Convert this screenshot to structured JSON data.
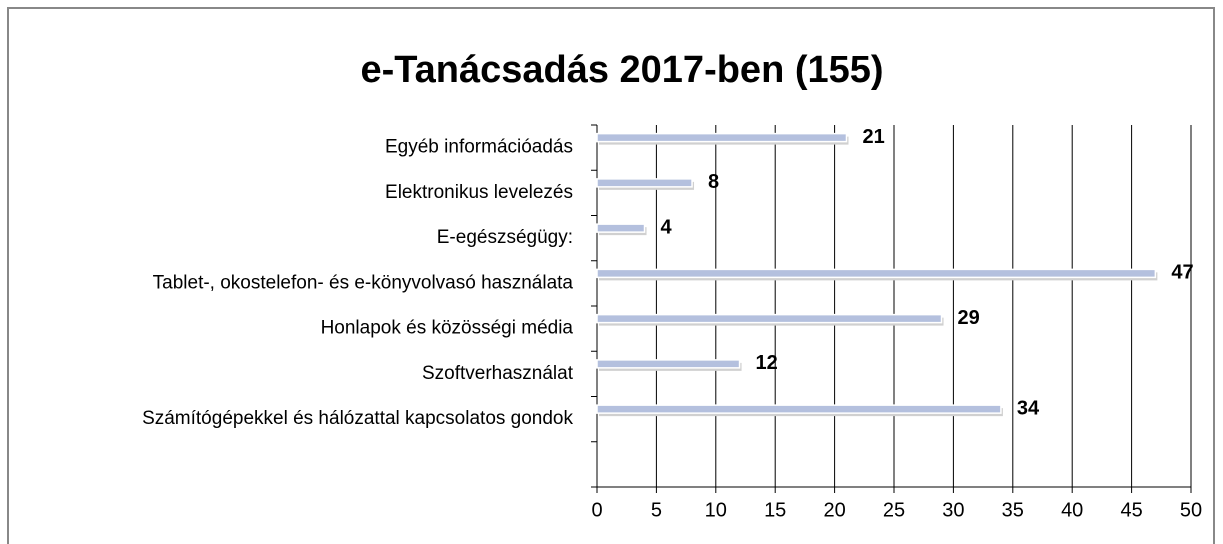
{
  "chart_data": {
    "type": "bar",
    "orientation": "horizontal",
    "title": "e-Tanácsadás 2017-ben (155)",
    "categories": [
      "Egyéb információadás",
      "Elektronikus levelezés",
      "E-egészségügy:",
      "Tablet-, okostelefon- és e-könyvolvasó használata",
      "Honlapok és közösségi média",
      "Szoftverhasználat",
      "Számítógépekkel és hálózattal kapcsolatos gondok",
      null
    ],
    "values": [
      21,
      8,
      4,
      47,
      29,
      12,
      34,
      null
    ],
    "color": "#b4c0de",
    "xlim": [
      0,
      50
    ],
    "xticks": [
      0,
      5,
      10,
      15,
      20,
      25,
      30,
      35,
      40,
      45,
      50
    ],
    "grid": true
  }
}
